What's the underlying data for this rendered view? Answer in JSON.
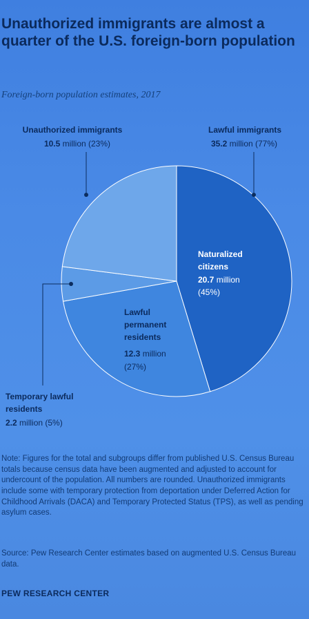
{
  "header": {
    "title": "Unauthorized immigrants are almost a quarter of the U.S. foreign-born population",
    "subtitle": "Foreign-born population estimates, 2017"
  },
  "chart_data": {
    "type": "pie",
    "slices": [
      {
        "label": "Naturalized citizens",
        "value": 20.7,
        "percent": 45,
        "color": "#1f63c4"
      },
      {
        "label": "Lawful permanent residents",
        "value": 12.3,
        "percent": 27,
        "color": "#3f86df"
      },
      {
        "label": "Temporary lawful residents",
        "value": 2.2,
        "percent": 5,
        "color": "#5c9be6"
      },
      {
        "label": "Unauthorized immigrants",
        "value": 10.5,
        "percent": 23,
        "color": "#6ea7ea"
      }
    ],
    "groups": [
      {
        "label": "Unauthorized immigrants",
        "value": 10.5,
        "percent": 23
      },
      {
        "label": "Lawful immigrants",
        "value": 35.2,
        "percent": 77
      }
    ],
    "unit": "million"
  },
  "labels": {
    "unauthorized": {
      "name": "Unauthorized immigrants",
      "value": "10.5",
      "unit": "million",
      "pct": "(23%)"
    },
    "lawful": {
      "name": "Lawful immigrants",
      "value": "35.2",
      "unit": "million",
      "pct": "(77%)"
    },
    "naturalized": {
      "line1": "Naturalized",
      "line2": "citizens",
      "value": "20.7",
      "unit": "million",
      "pct": "(45%)"
    },
    "permanent": {
      "line1": "Lawful",
      "line2": "permanent",
      "line3": "residents",
      "value": "12.3",
      "unit": "million",
      "pct": "(27%)"
    },
    "temporary": {
      "line1": "Temporary lawful",
      "line2": "residents",
      "value": "2.2",
      "unit": "million",
      "pct": "(5%)"
    }
  },
  "footer": {
    "note": "Note: Figures for the total and subgroups differ from published U.S. Census Bureau totals because census data have been augmented and adjusted to account for undercount of the population. All numbers are rounded. Unauthorized immigrants include some with temporary protection from deportation under Deferred Action for Childhood Arrivals (DACA) and Temporary Protected Status (TPS), as well as pending asylum cases.",
    "source": "Source: Pew Research Center estimates based on augmented U.S. Census Bureau data.",
    "brand": "PEW RESEARCH CENTER"
  }
}
